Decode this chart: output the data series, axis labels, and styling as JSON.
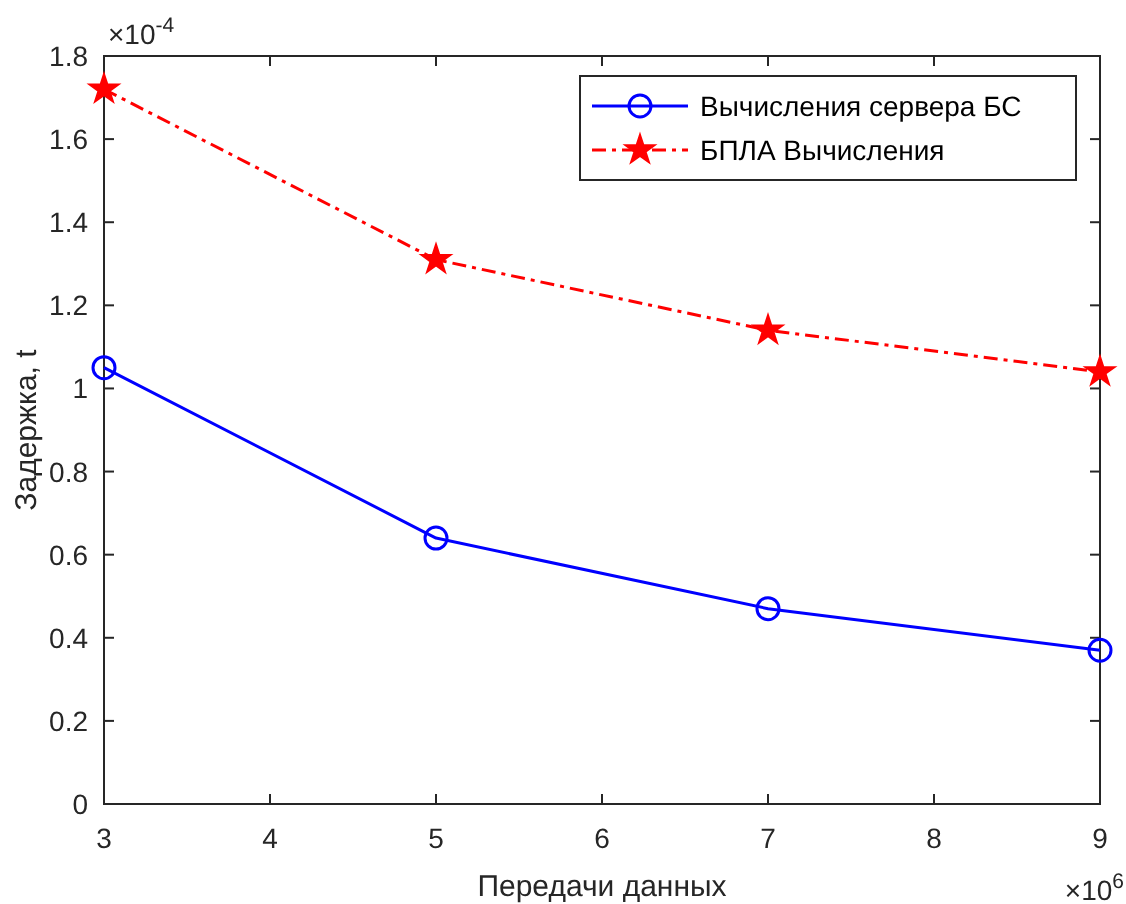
{
  "chart_data": {
    "type": "line",
    "xlabel": "Передачи данных",
    "ylabel": "Задержка, t",
    "x": [
      3,
      5,
      7,
      9
    ],
    "xlim": [
      3,
      9
    ],
    "xticks": [
      3,
      4,
      5,
      6,
      7,
      8,
      9
    ],
    "ylim": [
      0,
      1.8
    ],
    "yticks": [
      0,
      0.2,
      0.4,
      0.6,
      0.8,
      1,
      1.2,
      1.4,
      1.6,
      1.8
    ],
    "grid": false,
    "legend": "top right",
    "annotations": [
      "×10$^{-4}$",
      "×10$^{6}$"
    ],
    "series": [
      {
        "name": "Вычисления сервера БС",
        "color": "#0000ff",
        "values": [
          1.05,
          0.64,
          0.47,
          0.37
        ],
        "marker": "circle",
        "line_style": "solid"
      },
      {
        "name": "БПЛА Вычисления",
        "color": "#ff0000",
        "values": [
          1.72,
          1.31,
          1.14,
          1.04
        ],
        "marker": "star",
        "line_style": "dashed"
      }
    ]
  }
}
